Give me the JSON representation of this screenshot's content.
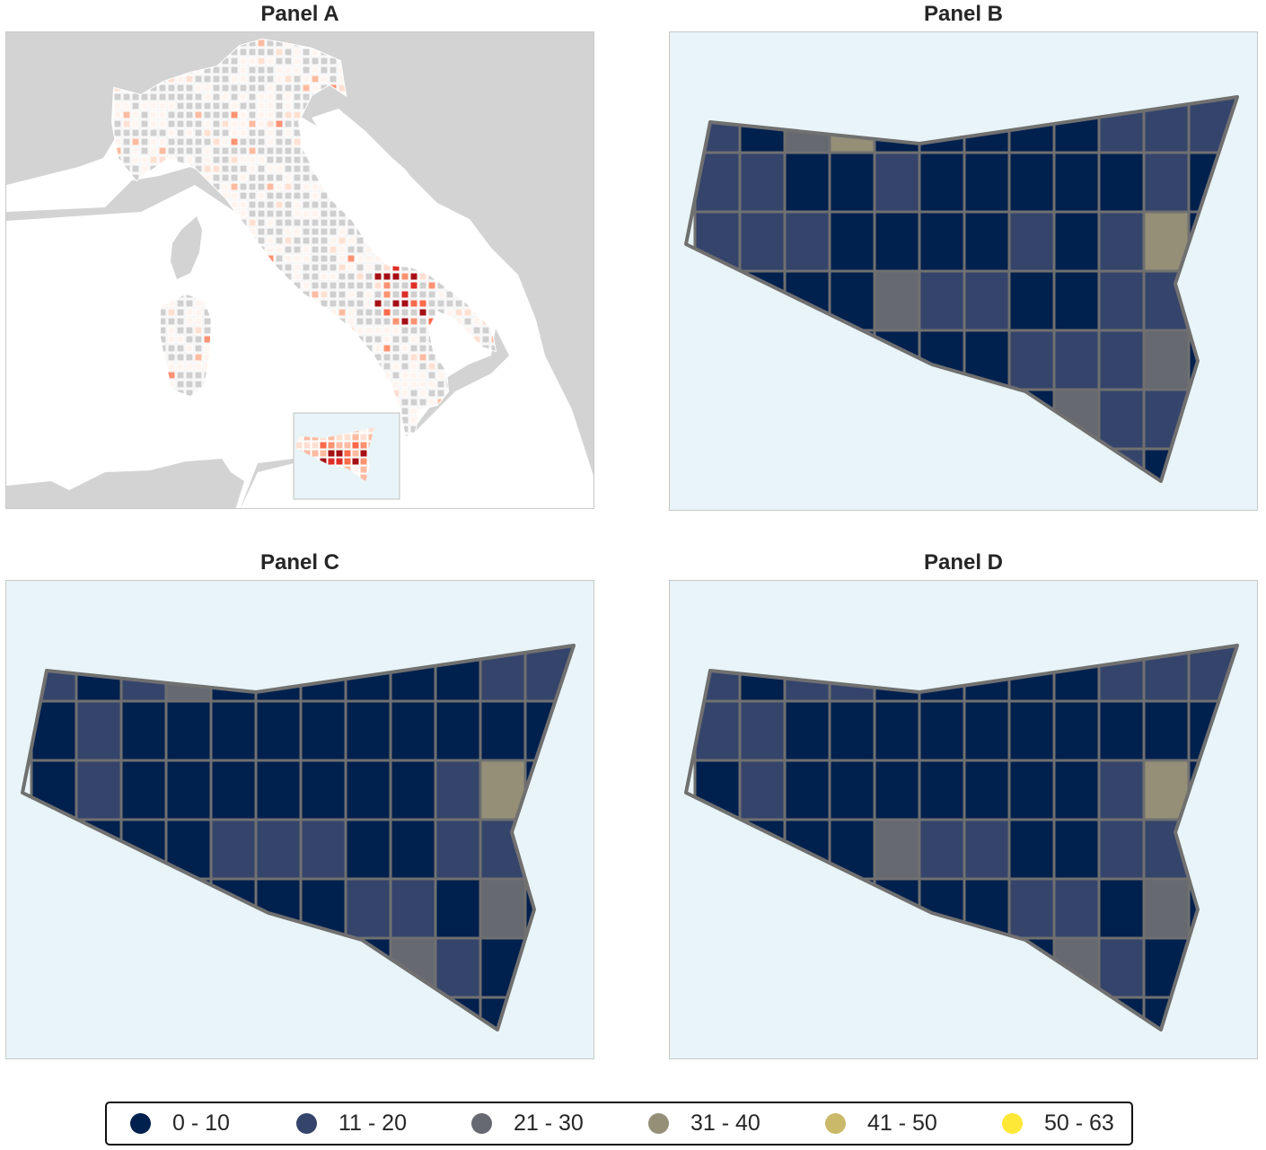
{
  "panels": [
    {
      "id": "A",
      "title": "Panel A"
    },
    {
      "id": "B",
      "title": "Panel B"
    },
    {
      "id": "C",
      "title": "Panel C"
    },
    {
      "id": "D",
      "title": "Panel D"
    }
  ],
  "legend": [
    {
      "label": "0 - 10",
      "color": "#00204d"
    },
    {
      "label": "11 - 20",
      "color": "#35446b"
    },
    {
      "label": "21 - 30",
      "color": "#666970"
    },
    {
      "label": "31 - 40",
      "color": "#958f78"
    },
    {
      "label": "41 - 50",
      "color": "#cab969"
    },
    {
      "label": "50 - 63",
      "color": "#fde737"
    }
  ],
  "colors": {
    "land_bg": "#d3d3d3",
    "sea_bg": "#ffffff",
    "inset_bg": "#e8f4f7",
    "cell_outline": "#707070",
    "no_data_cell": "#cfcfcf"
  },
  "sicily_grids": {
    "B": [
      [
        1,
        0,
        2,
        3,
        0,
        0,
        0,
        0,
        0,
        1,
        1,
        1
      ],
      [
        1,
        1,
        0,
        0,
        1,
        0,
        0,
        0,
        0,
        0,
        1,
        0
      ],
      [
        1,
        1,
        1,
        0,
        0,
        0,
        0,
        1,
        0,
        1,
        3,
        0
      ],
      [
        0,
        0,
        0,
        0,
        2,
        1,
        1,
        0,
        0,
        1,
        1,
        0
      ],
      [
        0,
        0,
        0,
        0,
        0,
        0,
        0,
        1,
        1,
        1,
        2,
        0
      ],
      [
        0,
        0,
        0,
        0,
        0,
        0,
        0,
        0,
        2,
        1,
        1,
        0
      ],
      [
        0,
        0,
        0,
        0,
        0,
        0,
        0,
        0,
        0,
        1,
        0,
        0
      ]
    ],
    "C": [
      [
        1,
        0,
        1,
        2,
        0,
        0,
        0,
        0,
        0,
        0,
        1,
        1
      ],
      [
        0,
        1,
        0,
        0,
        0,
        0,
        0,
        0,
        0,
        0,
        0,
        0
      ],
      [
        0,
        1,
        0,
        0,
        0,
        0,
        0,
        0,
        0,
        1,
        3,
        0
      ],
      [
        0,
        0,
        0,
        0,
        1,
        1,
        1,
        0,
        0,
        1,
        1,
        0
      ],
      [
        0,
        0,
        0,
        0,
        0,
        0,
        0,
        1,
        1,
        0,
        2,
        0
      ],
      [
        0,
        0,
        0,
        0,
        0,
        0,
        0,
        0,
        2,
        1,
        0,
        0
      ],
      [
        0,
        0,
        0,
        0,
        0,
        0,
        0,
        0,
        0,
        0,
        0,
        0
      ]
    ],
    "D": [
      [
        1,
        0,
        1,
        1,
        0,
        0,
        0,
        0,
        0,
        1,
        1,
        1
      ],
      [
        1,
        1,
        0,
        0,
        0,
        0,
        0,
        0,
        0,
        0,
        0,
        0
      ],
      [
        0,
        1,
        0,
        0,
        0,
        0,
        0,
        0,
        0,
        1,
        3,
        0
      ],
      [
        0,
        0,
        0,
        0,
        2,
        1,
        1,
        0,
        0,
        1,
        1,
        0
      ],
      [
        0,
        0,
        0,
        0,
        0,
        0,
        0,
        1,
        1,
        0,
        2,
        0
      ],
      [
        0,
        0,
        0,
        0,
        0,
        0,
        0,
        0,
        2,
        1,
        0,
        0
      ],
      [
        0,
        0,
        0,
        0,
        0,
        0,
        0,
        0,
        0,
        0,
        0,
        0
      ]
    ]
  }
}
